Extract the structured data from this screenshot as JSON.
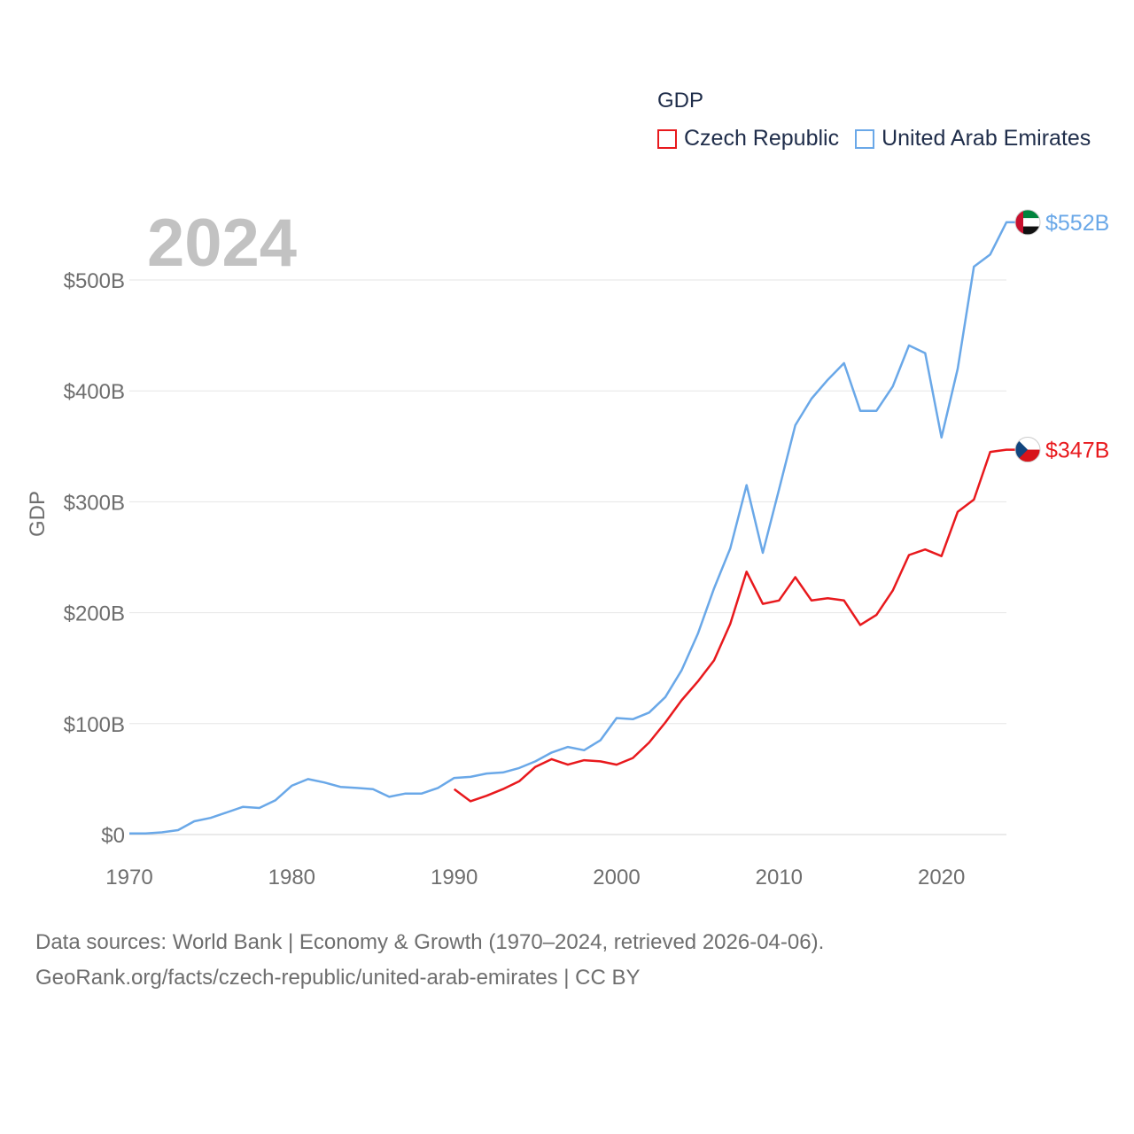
{
  "legend": {
    "title": "GDP",
    "items": [
      {
        "label": "Czech Republic",
        "color": "#e8191d"
      },
      {
        "label": "United Arab Emirates",
        "color": "#6aa8e8"
      }
    ]
  },
  "source": {
    "line1": "Data sources: World Bank | Economy & Growth (1970–2024, retrieved 2026-04-06).",
    "line2": "GeoRank.org/facts/czech-republic/united-arab-emirates | CC BY"
  },
  "chart_data": {
    "type": "line",
    "title": "GDP",
    "year_label": "2024",
    "ylabel": "GDP",
    "xlabel": "",
    "xlim": [
      1970,
      2024
    ],
    "ylim": [
      0,
      500
    ],
    "x_ticks": [
      1970,
      1980,
      1990,
      2000,
      2010,
      2020
    ],
    "y_ticks": [
      {
        "value": 0,
        "label": "$0"
      },
      {
        "value": 100,
        "label": "$100B"
      },
      {
        "value": 200,
        "label": "$200B"
      },
      {
        "value": 300,
        "label": "$300B"
      },
      {
        "value": 400,
        "label": "$400B"
      },
      {
        "value": 500,
        "label": "$500B"
      }
    ],
    "grid": true,
    "units": "billion USD",
    "series": [
      {
        "name": "Czech Republic",
        "color": "#e8191d",
        "end_label": "$347B",
        "flag": "czech-flag",
        "x": [
          1990,
          1991,
          1992,
          1993,
          1994,
          1995,
          1996,
          1997,
          1998,
          1999,
          2000,
          2001,
          2002,
          2003,
          2004,
          2005,
          2006,
          2007,
          2008,
          2009,
          2010,
          2011,
          2012,
          2013,
          2014,
          2015,
          2016,
          2017,
          2018,
          2019,
          2020,
          2021,
          2022,
          2023,
          2024
        ],
        "values": [
          41,
          30,
          35,
          41,
          48,
          61,
          68,
          63,
          67,
          66,
          63,
          69,
          83,
          101,
          121,
          138,
          157,
          190,
          237,
          208,
          211,
          232,
          211,
          213,
          211,
          189,
          198,
          220,
          252,
          257,
          251,
          291,
          302,
          345,
          347
        ]
      },
      {
        "name": "United Arab Emirates",
        "color": "#6aa8e8",
        "end_label": "$552B",
        "flag": "uae-flag",
        "x": [
          1970,
          1971,
          1972,
          1973,
          1974,
          1975,
          1976,
          1977,
          1978,
          1979,
          1980,
          1981,
          1982,
          1983,
          1984,
          1985,
          1986,
          1987,
          1988,
          1989,
          1990,
          1991,
          1992,
          1993,
          1994,
          1995,
          1996,
          1997,
          1998,
          1999,
          2000,
          2001,
          2002,
          2003,
          2004,
          2005,
          2006,
          2007,
          2008,
          2009,
          2010,
          2011,
          2012,
          2013,
          2014,
          2015,
          2016,
          2017,
          2018,
          2019,
          2020,
          2021,
          2022,
          2023,
          2024
        ],
        "values": [
          1,
          1,
          2,
          4,
          12,
          15,
          20,
          25,
          24,
          31,
          44,
          50,
          47,
          43,
          42,
          41,
          34,
          37,
          37,
          42,
          51,
          52,
          55,
          56,
          60,
          66,
          74,
          79,
          76,
          85,
          105,
          104,
          110,
          124,
          148,
          181,
          222,
          258,
          315,
          254,
          311,
          369,
          393,
          410,
          425,
          382,
          382,
          404,
          441,
          434,
          358,
          420,
          512,
          523,
          552
        ]
      }
    ]
  }
}
